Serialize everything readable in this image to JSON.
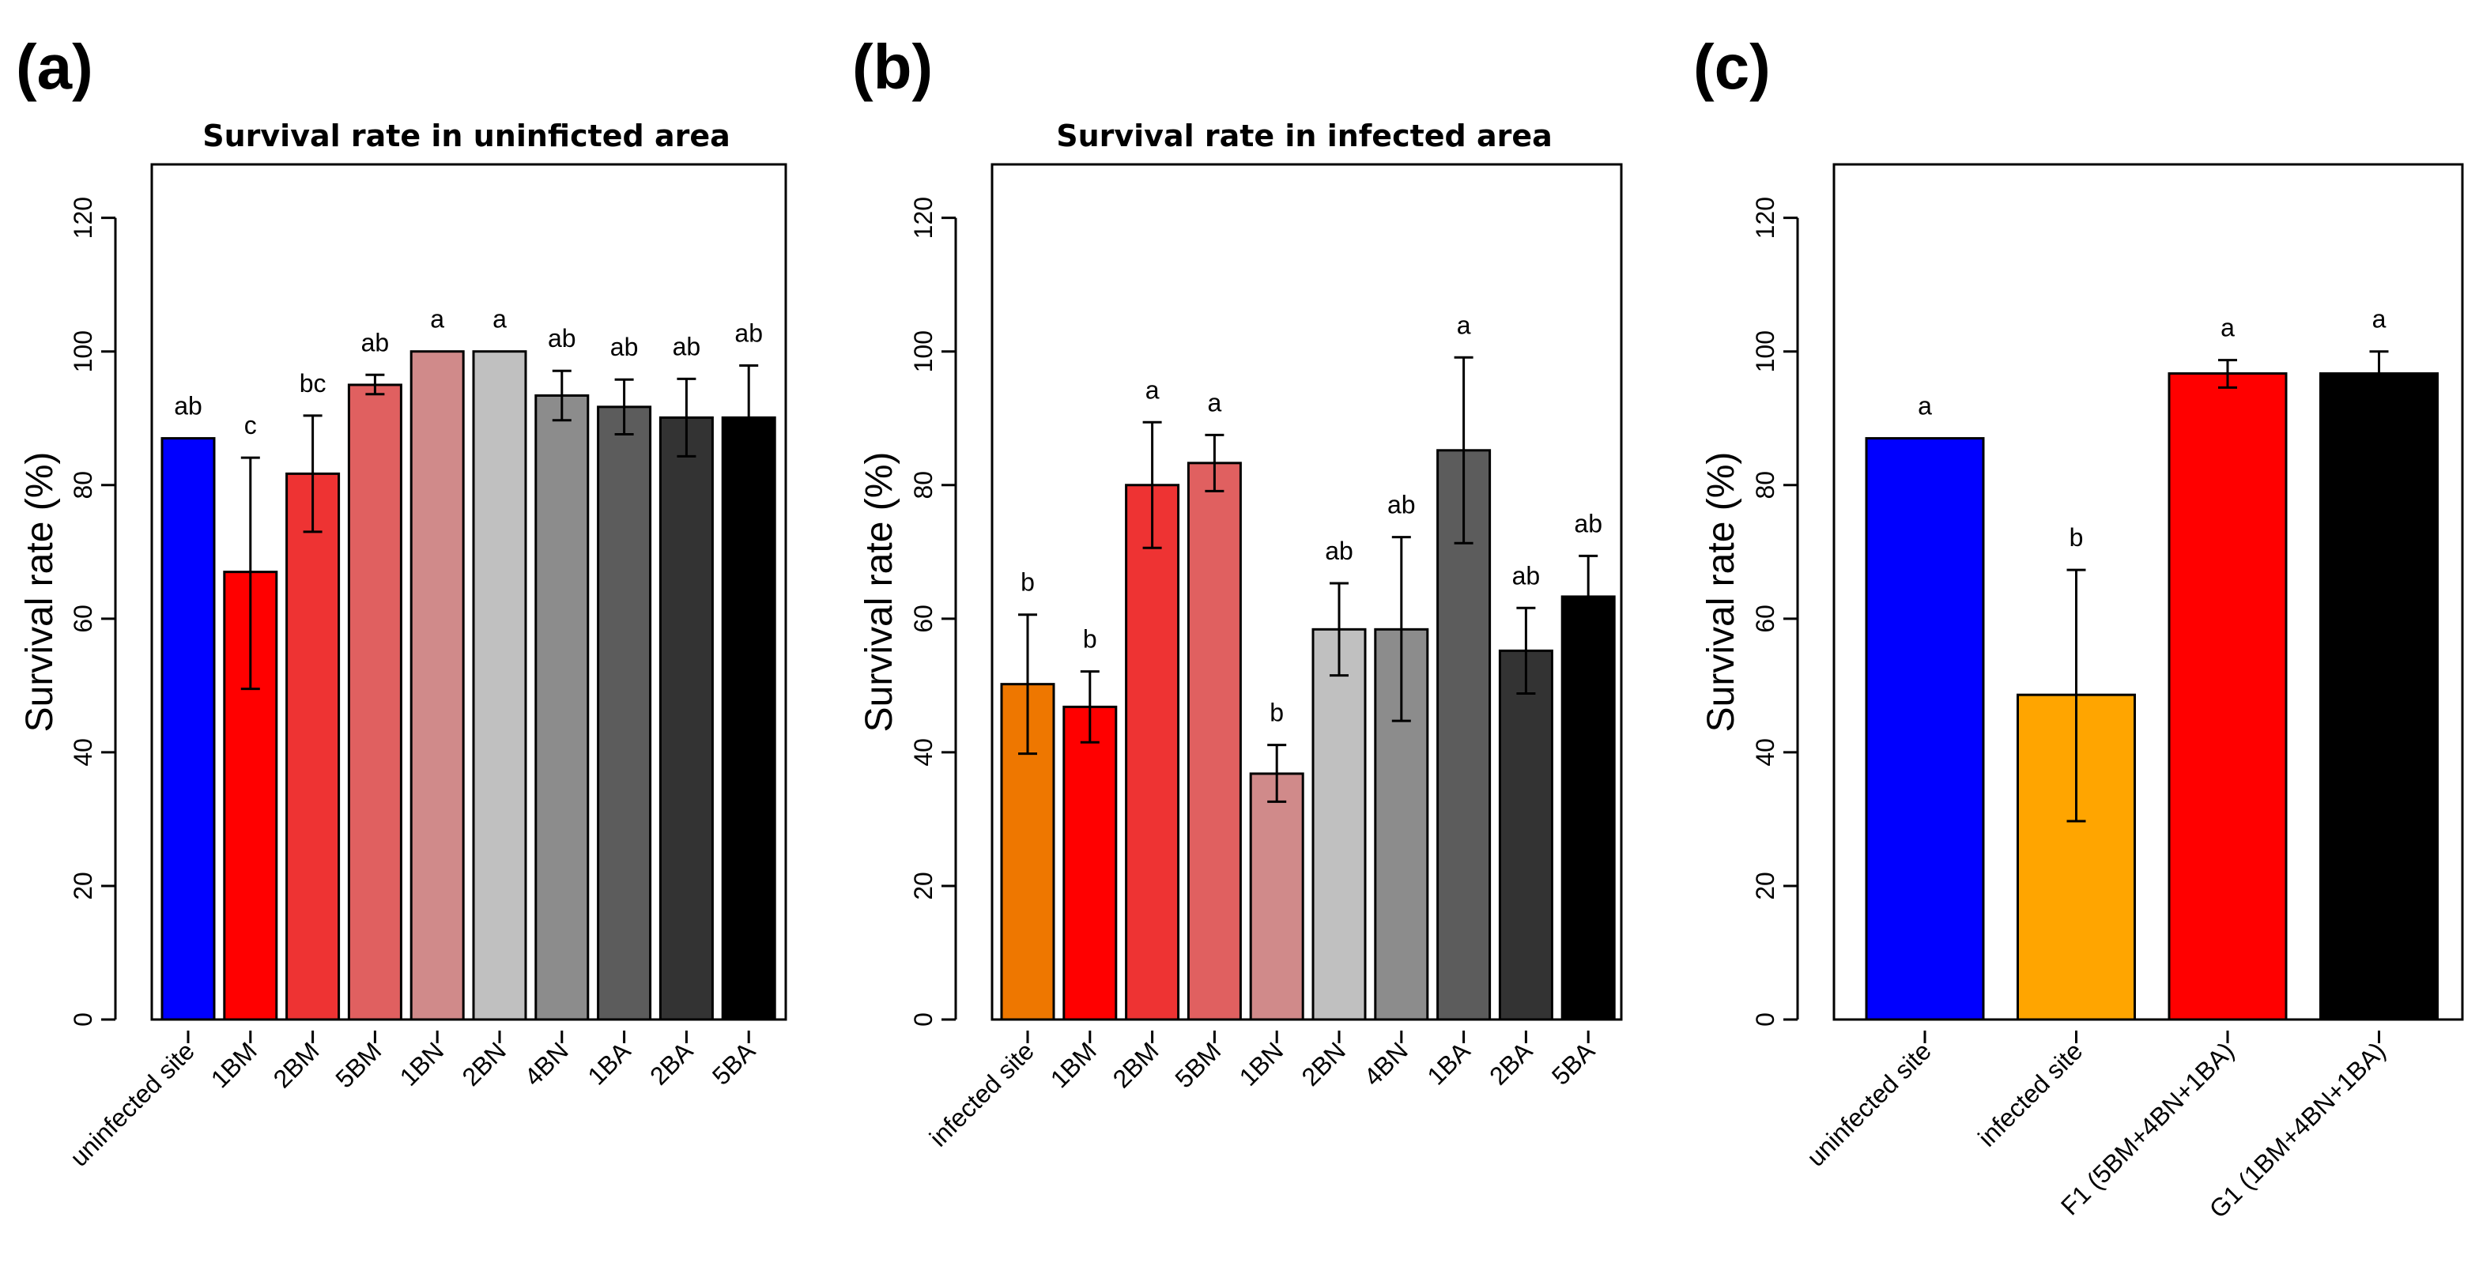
{
  "chart_data": [
    {
      "type": "bar",
      "panel": "(a)",
      "title": "Survival rate in uninficted area",
      "xlabel": "",
      "ylabel": "Survival rate (%)",
      "ylim": [
        0,
        128
      ],
      "yticks": [
        0,
        20,
        40,
        60,
        80,
        100,
        120
      ],
      "categories": [
        "uninfected site",
        "1BM",
        "2BM",
        "5BM",
        "1BN",
        "2BN",
        "4BN",
        "1BA",
        "2BA",
        "5BA"
      ],
      "values": [
        87,
        67,
        81.7,
        95,
        100,
        100,
        93.4,
        91.7,
        90.1,
        90.1
      ],
      "errors": [
        [
          87,
          87
        ],
        [
          49.5,
          84.1
        ],
        [
          73,
          90.4
        ],
        [
          93.6,
          96.5
        ],
        [
          100,
          100
        ],
        [
          100,
          100
        ],
        [
          89.7,
          97.1
        ],
        [
          87.6,
          95.8
        ],
        [
          84.3,
          95.9
        ],
        [
          82.3,
          97.9
        ]
      ],
      "significance": [
        "ab",
        "c",
        "bc",
        "ab",
        "a",
        "a",
        "ab",
        "ab",
        "ab",
        "ab"
      ],
      "colors": [
        "#0000ff",
        "#ff0000",
        "#ee3333",
        "#e06060",
        "#d08a8a",
        "#c0c0c0",
        "#8c8c8c",
        "#5c5c5c",
        "#333333",
        "#000000"
      ]
    },
    {
      "type": "bar",
      "panel": "(b)",
      "title": "Survival rate in infected area",
      "xlabel": "",
      "ylabel": "Survival rate (%)",
      "ylim": [
        0,
        128
      ],
      "yticks": [
        0,
        20,
        40,
        60,
        80,
        100,
        120
      ],
      "categories": [
        "infected site",
        "1BM",
        "2BM",
        "5BM",
        "1BN",
        "2BN",
        "4BN",
        "1BA",
        "2BA",
        "5BA"
      ],
      "values": [
        50.2,
        46.8,
        80,
        83.3,
        36.8,
        58.4,
        58.4,
        85.2,
        55.2,
        63.3
      ],
      "errors": [
        [
          39.8,
          60.6
        ],
        [
          41.5,
          52.1
        ],
        [
          70.6,
          89.4
        ],
        [
          79.1,
          87.5
        ],
        [
          32.6,
          41.1
        ],
        [
          51.5,
          65.3
        ],
        [
          44.7,
          72.2
        ],
        [
          71.3,
          99.1
        ],
        [
          48.8,
          61.6
        ],
        [
          57.2,
          69.4
        ]
      ],
      "significance": [
        "b",
        "b",
        "a",
        "a",
        "b",
        "ab",
        "ab",
        "a",
        "ab",
        "ab"
      ],
      "colors": [
        "#ee7700",
        "#ff0000",
        "#ee3333",
        "#e06060",
        "#d08a8a",
        "#c0c0c0",
        "#8c8c8c",
        "#5c5c5c",
        "#333333",
        "#000000"
      ]
    },
    {
      "type": "bar",
      "panel": "(c)",
      "title": "",
      "xlabel": "",
      "ylabel": "Survival rate (%)",
      "ylim": [
        0,
        128
      ],
      "yticks": [
        0,
        20,
        40,
        60,
        80,
        100,
        120
      ],
      "categories": [
        "uninfected site",
        "infected site",
        "F1 (5BM+4BN+1BA)",
        "G1 (1BM+4BN+1BA)"
      ],
      "values": [
        87,
        48.6,
        96.7,
        96.7
      ],
      "errors": [
        [
          87,
          87
        ],
        [
          29.7,
          67.3
        ],
        [
          94.6,
          98.7
        ],
        [
          93.3,
          100
        ]
      ],
      "significance": [
        "a",
        "b",
        "a",
        "a"
      ],
      "colors": [
        "#0000ff",
        "#ffa500",
        "#ff0000",
        "#000000"
      ]
    }
  ]
}
